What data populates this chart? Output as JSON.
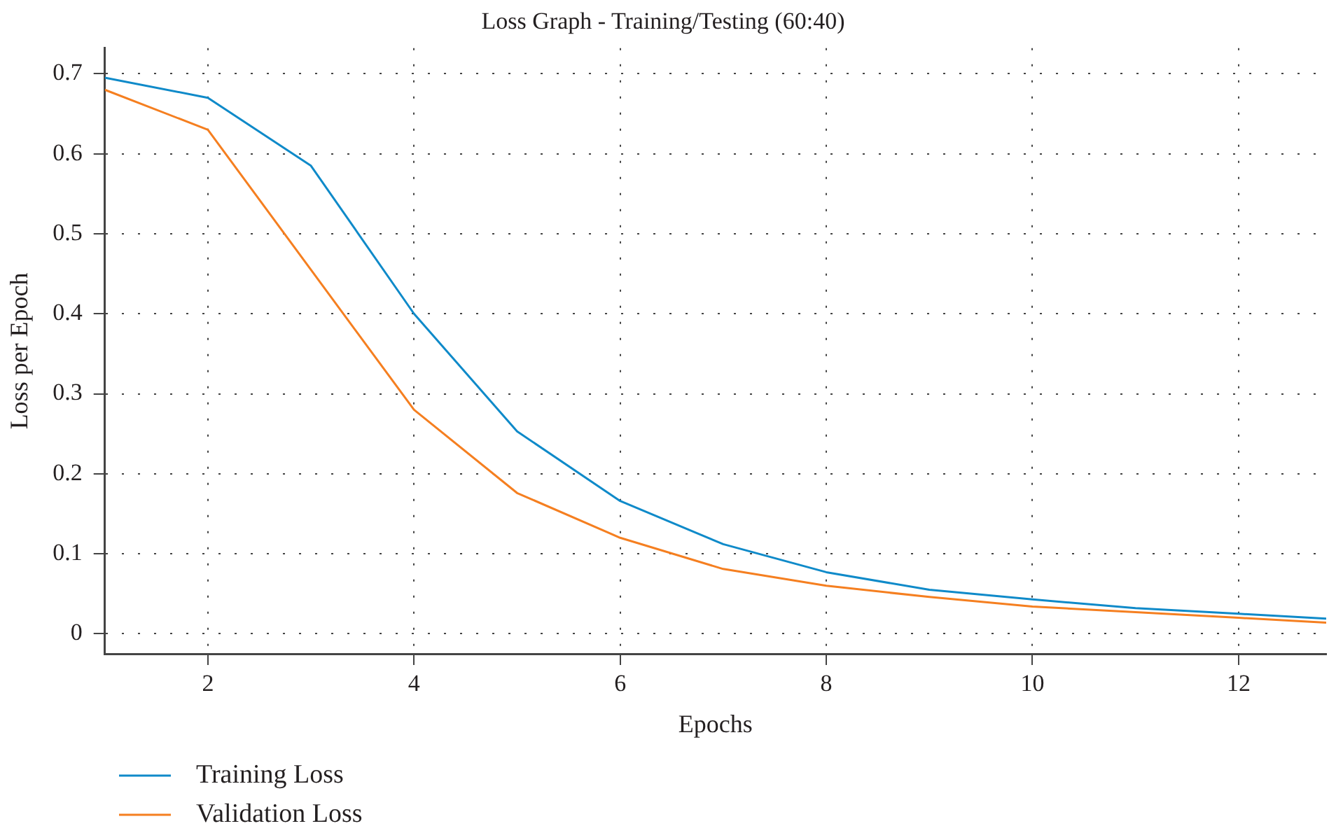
{
  "chart_data": {
    "type": "line",
    "title": "Loss Graph - Training/Testing (60:40)",
    "xlabel": "Epochs",
    "ylabel": "Loss per Epoch",
    "x": [
      1,
      2,
      3,
      4,
      5,
      6,
      7,
      8,
      9,
      10,
      11,
      12,
      12.85
    ],
    "series": [
      {
        "name": "Training Loss",
        "color": "#0f8ac9",
        "values": [
          0.695,
          0.67,
          0.585,
          0.4,
          0.253,
          0.166,
          0.112,
          0.077,
          0.055,
          0.043,
          0.032,
          0.025,
          0.019
        ]
      },
      {
        "name": "Validation Loss",
        "color": "#f57f20",
        "values": [
          0.68,
          0.63,
          0.455,
          0.28,
          0.176,
          0.12,
          0.081,
          0.06,
          0.046,
          0.034,
          0.027,
          0.02,
          0.014
        ]
      }
    ],
    "xlim": [
      1,
      12.85
    ],
    "xticks": [
      2,
      4,
      6,
      8,
      10,
      12
    ],
    "ylim": [
      -0.025,
      0.732
    ],
    "yticks": [
      0,
      0.1,
      0.2,
      0.3,
      0.4,
      0.5,
      0.6,
      0.7
    ],
    "grid": true,
    "legend": "bottom left",
    "marker": "none",
    "line_style": "solid"
  }
}
